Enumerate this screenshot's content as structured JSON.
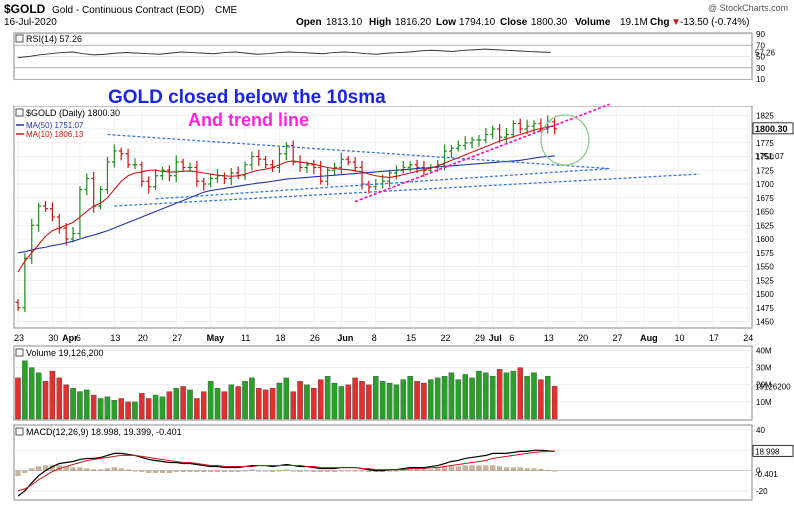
{
  "header": {
    "symbol": "$GOLD",
    "name": "Gold - Continuous Contract (EOD)",
    "exchange": "CME",
    "date": "16-Jul-2020",
    "open_label": "Open",
    "open": "1813.10",
    "high_label": "High",
    "high": "1816.20",
    "low_label": "Low",
    "low": "1794.10",
    "close_label": "Close",
    "close": "1800.30",
    "volume_label": "Volume",
    "volume": "19.1M",
    "chg_label": "Chg",
    "chg": "-13.50 (-0.74%)",
    "chg_arrow": "▼",
    "watermark": "@ StockCharts.com"
  },
  "annotations": {
    "line1": "GOLD closed below the 10sma",
    "line2": "And trend line"
  },
  "colors": {
    "up": "#1e8c1e",
    "down": "#d01414",
    "sma50": "#2233aa",
    "sma10": "#d01414",
    "trend_blue": "#3a78d8",
    "trend_pink": "#ff00cc",
    "circle": "#88cc88",
    "annotation_blue": "#1a24e6",
    "annotation_pink": "#ff22dd"
  },
  "chart_data": [
    {
      "type": "line",
      "panel": "rsi",
      "title": "RSI(14) 57.26",
      "ylim": [
        10,
        90
      ],
      "y_ticks": [
        90,
        70,
        50,
        30,
        10
      ],
      "value_label": "57.26",
      "values": [
        48,
        50,
        53,
        55,
        57,
        58,
        55,
        53,
        54,
        56,
        57,
        56,
        55,
        54,
        56,
        58,
        57,
        56,
        55,
        57,
        58,
        56,
        54,
        55,
        57,
        58,
        57,
        56,
        55,
        57,
        58,
        57,
        55,
        54,
        56,
        57,
        58,
        60,
        61,
        60,
        59,
        61,
        62,
        63,
        62,
        61,
        60,
        59,
        58,
        57.26
      ]
    },
    {
      "type": "candlestick",
      "panel": "price",
      "title": "$GOLD (Daily) 1800.30",
      "legend": [
        {
          "name": "MA(50) 1751.07",
          "color": "#2233aa"
        },
        {
          "name": "MA(10) 1806.13",
          "color": "#d01414"
        }
      ],
      "ylim": [
        1440,
        1840
      ],
      "y_ticks": [
        1825,
        1800,
        1775,
        1750,
        1725,
        1700,
        1675,
        1650,
        1625,
        1600,
        1575,
        1550,
        1525,
        1500,
        1475,
        1450
      ],
      "last_price_label": "1800.30",
      "ma50_label": "1751.07",
      "x_ticks": [
        {
          "i": 0,
          "label": "23"
        },
        {
          "i": 5,
          "label": "30"
        },
        {
          "i": 7,
          "label": "Apr"
        },
        {
          "i": 9,
          "label": "6"
        },
        {
          "i": 14,
          "label": "13"
        },
        {
          "i": 18,
          "label": "20"
        },
        {
          "i": 23,
          "label": "27"
        },
        {
          "i": 28,
          "label": "May"
        },
        {
          "i": 33,
          "label": "11"
        },
        {
          "i": 38,
          "label": "18"
        },
        {
          "i": 43,
          "label": "26"
        },
        {
          "i": 47,
          "label": "Jun"
        },
        {
          "i": 52,
          "label": "8"
        },
        {
          "i": 57,
          "label": "15"
        },
        {
          "i": 62,
          "label": "22"
        },
        {
          "i": 67,
          "label": "29"
        },
        {
          "i": 69,
          "label": "Jul"
        },
        {
          "i": 72,
          "label": "6"
        },
        {
          "i": 77,
          "label": "13"
        },
        {
          "i": 82,
          "label": "20"
        },
        {
          "i": 87,
          "label": "27"
        },
        {
          "i": 91,
          "label": "Aug"
        },
        {
          "i": 96,
          "label": "10"
        },
        {
          "i": 101,
          "label": "17"
        },
        {
          "i": 106,
          "label": "24"
        }
      ],
      "close": [
        1475,
        1565,
        1625,
        1660,
        1655,
        1640,
        1620,
        1600,
        1610,
        1690,
        1710,
        1660,
        1690,
        1740,
        1760,
        1755,
        1735,
        1735,
        1705,
        1695,
        1715,
        1725,
        1715,
        1740,
        1730,
        1730,
        1705,
        1700,
        1710,
        1715,
        1710,
        1720,
        1715,
        1735,
        1750,
        1745,
        1735,
        1730,
        1755,
        1770,
        1740,
        1730,
        1735,
        1730,
        1705,
        1725,
        1730,
        1745,
        1740,
        1730,
        1700,
        1695,
        1700,
        1705,
        1720,
        1725,
        1730,
        1735,
        1730,
        1725,
        1730,
        1735,
        1760,
        1765,
        1770,
        1775,
        1780,
        1780,
        1790,
        1800,
        1785,
        1790,
        1810,
        1800,
        1805,
        1810,
        1800,
        1813,
        1800.3
      ],
      "ma50": [
        1575,
        1577,
        1580,
        1583,
        1585,
        1588,
        1590,
        1593,
        1596,
        1600,
        1604,
        1607,
        1611,
        1615,
        1620,
        1625,
        1630,
        1635,
        1640,
        1645,
        1650,
        1655,
        1660,
        1665,
        1670,
        1675,
        1680,
        1685,
        1688,
        1690,
        1692,
        1694,
        1696,
        1698,
        1700,
        1702,
        1703,
        1705,
        1707,
        1709,
        1710,
        1711,
        1712,
        1713,
        1714,
        1715,
        1716,
        1717,
        1718,
        1719,
        1720,
        1721,
        1722,
        1723,
        1724,
        1725,
        1726,
        1727,
        1728,
        1729,
        1730,
        1731,
        1732,
        1733,
        1734,
        1735,
        1736,
        1737,
        1738,
        1739,
        1740,
        1741,
        1742,
        1743,
        1745,
        1747,
        1749,
        1750,
        1751.07
      ],
      "ma10": [
        1540,
        1560,
        1575,
        1590,
        1605,
        1615,
        1620,
        1625,
        1630,
        1640,
        1650,
        1660,
        1665,
        1675,
        1690,
        1705,
        1715,
        1720,
        1722,
        1725,
        1725,
        1723,
        1722,
        1722,
        1723,
        1724,
        1722,
        1720,
        1718,
        1716,
        1715,
        1714,
        1715,
        1718,
        1722,
        1725,
        1727,
        1730,
        1735,
        1740,
        1742,
        1740,
        1738,
        1736,
        1733,
        1730,
        1728,
        1727,
        1726,
        1724,
        1722,
        1718,
        1715,
        1713,
        1712,
        1714,
        1717,
        1720,
        1723,
        1726,
        1729,
        1733,
        1738,
        1743,
        1748,
        1753,
        1758,
        1763,
        1768,
        1773,
        1778,
        1782,
        1786,
        1790,
        1794,
        1798,
        1801,
        1804,
        1806.13
      ]
    },
    {
      "type": "bar",
      "panel": "volume",
      "title": "Volume 19,126,200",
      "ylim": [
        0,
        42
      ],
      "y_ticks": [
        {
          "v": 40,
          "label": "40M"
        },
        {
          "v": 30,
          "label": "30M"
        },
        {
          "v": 20,
          "label": "20M"
        },
        {
          "v": 10,
          "label": "10M"
        }
      ],
      "value_label": "19126200",
      "values": [
        24,
        34,
        30,
        27,
        22,
        28,
        24,
        20,
        18,
        16,
        17,
        14,
        12,
        13,
        11,
        12,
        10,
        10,
        15,
        12,
        14,
        13,
        16,
        18,
        19,
        17,
        12,
        16,
        22,
        18,
        16,
        20,
        19,
        22,
        24,
        18,
        17,
        18,
        21,
        24,
        16,
        22,
        20,
        18,
        23,
        25,
        21,
        19,
        20,
        24,
        22,
        20,
        25,
        22,
        21,
        20,
        23,
        25,
        22,
        21,
        23,
        24,
        25,
        27,
        23,
        26,
        24,
        28,
        27,
        25,
        29,
        27,
        28,
        30,
        25,
        27,
        23,
        25,
        19.1
      ]
    },
    {
      "type": "line",
      "panel": "macd",
      "title": "MACD(12,26,9) 18.998, 19.399, -0.401",
      "ylim": [
        -28,
        44
      ],
      "y_ticks": [
        40,
        20,
        0,
        -20
      ],
      "macd_label": "18.998",
      "hist_label": "-0.401",
      "macd": [
        -25,
        -20,
        -12,
        -5,
        0,
        4,
        7,
        8,
        9,
        11,
        12,
        12,
        13,
        15,
        17,
        17,
        16,
        15,
        13,
        11,
        10,
        9,
        8,
        8,
        7,
        7,
        6,
        5,
        4,
        4,
        3,
        3,
        3,
        4,
        5,
        5,
        5,
        4,
        5,
        6,
        5,
        4,
        4,
        3,
        2,
        2,
        2,
        3,
        3,
        3,
        2,
        1,
        0,
        0,
        1,
        1,
        2,
        3,
        3,
        3,
        4,
        5,
        7,
        9,
        10,
        12,
        13,
        14,
        15,
        17,
        17,
        17,
        18,
        19,
        19,
        20,
        20,
        19.5,
        18.998
      ],
      "signal": [
        -20,
        -18,
        -14,
        -9,
        -5,
        -1,
        2,
        4,
        6,
        8,
        10,
        11,
        12,
        13,
        14,
        15,
        15,
        15,
        14,
        13,
        12,
        11,
        10,
        9,
        8,
        8,
        7,
        6,
        5,
        5,
        4,
        4,
        4,
        4,
        4,
        5,
        5,
        5,
        5,
        5,
        5,
        5,
        4,
        4,
        3,
        3,
        3,
        3,
        3,
        3,
        2,
        2,
        1,
        1,
        1,
        1,
        1,
        2,
        2,
        2,
        3,
        3,
        4,
        5,
        6,
        7,
        8,
        9,
        10,
        12,
        13,
        14,
        15,
        16,
        17,
        18,
        18.5,
        19,
        19.399
      ],
      "histogram": [
        -5,
        -2,
        2,
        4,
        5,
        5,
        5,
        4,
        3,
        3,
        2,
        1,
        1,
        2,
        3,
        2,
        1,
        0,
        -1,
        -2,
        -2,
        -2,
        -2,
        -1,
        -1,
        -1,
        -1,
        -1,
        -1,
        -1,
        -1,
        -1,
        -1,
        0,
        1,
        0,
        0,
        -1,
        0,
        1,
        0,
        -1,
        0,
        -1,
        -1,
        -1,
        -1,
        0,
        0,
        0,
        0,
        -1,
        -1,
        -1,
        0,
        0,
        1,
        1,
        1,
        1,
        1,
        2,
        3,
        4,
        4,
        5,
        5,
        5,
        5,
        5,
        4,
        3,
        3,
        3,
        2,
        2,
        1.5,
        0.5,
        -0.401
      ]
    }
  ]
}
